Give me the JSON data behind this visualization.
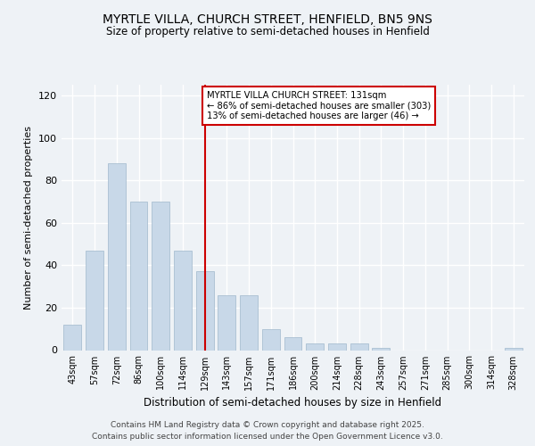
{
  "title1": "MYRTLE VILLA, CHURCH STREET, HENFIELD, BN5 9NS",
  "title2": "Size of property relative to semi-detached houses in Henfield",
  "xlabel": "Distribution of semi-detached houses by size in Henfield",
  "ylabel": "Number of semi-detached properties",
  "categories": [
    "43sqm",
    "57sqm",
    "72sqm",
    "86sqm",
    "100sqm",
    "114sqm",
    "129sqm",
    "143sqm",
    "157sqm",
    "171sqm",
    "186sqm",
    "200sqm",
    "214sqm",
    "228sqm",
    "243sqm",
    "257sqm",
    "271sqm",
    "285sqm",
    "300sqm",
    "314sqm",
    "328sqm"
  ],
  "values": [
    12,
    47,
    88,
    70,
    70,
    47,
    37,
    26,
    26,
    10,
    6,
    3,
    3,
    3,
    1,
    0,
    0,
    0,
    0,
    0,
    1
  ],
  "bar_color": "#c8d8e8",
  "bar_edge_color": "#a0b8cc",
  "vline_x_idx": 6,
  "vline_color": "#cc0000",
  "annotation_text": "MYRTLE VILLA CHURCH STREET: 131sqm\n← 86% of semi-detached houses are smaller (303)\n13% of semi-detached houses are larger (46) →",
  "annotation_box_color": "#ffffff",
  "annotation_box_edge": "#cc0000",
  "ylim": [
    0,
    125
  ],
  "yticks": [
    0,
    20,
    40,
    60,
    80,
    100,
    120
  ],
  "footer": "Contains HM Land Registry data © Crown copyright and database right 2025.\nContains public sector information licensed under the Open Government Licence v3.0.",
  "bg_color": "#eef2f6",
  "plot_bg_color": "#eef2f6",
  "grid_color": "#ffffff"
}
